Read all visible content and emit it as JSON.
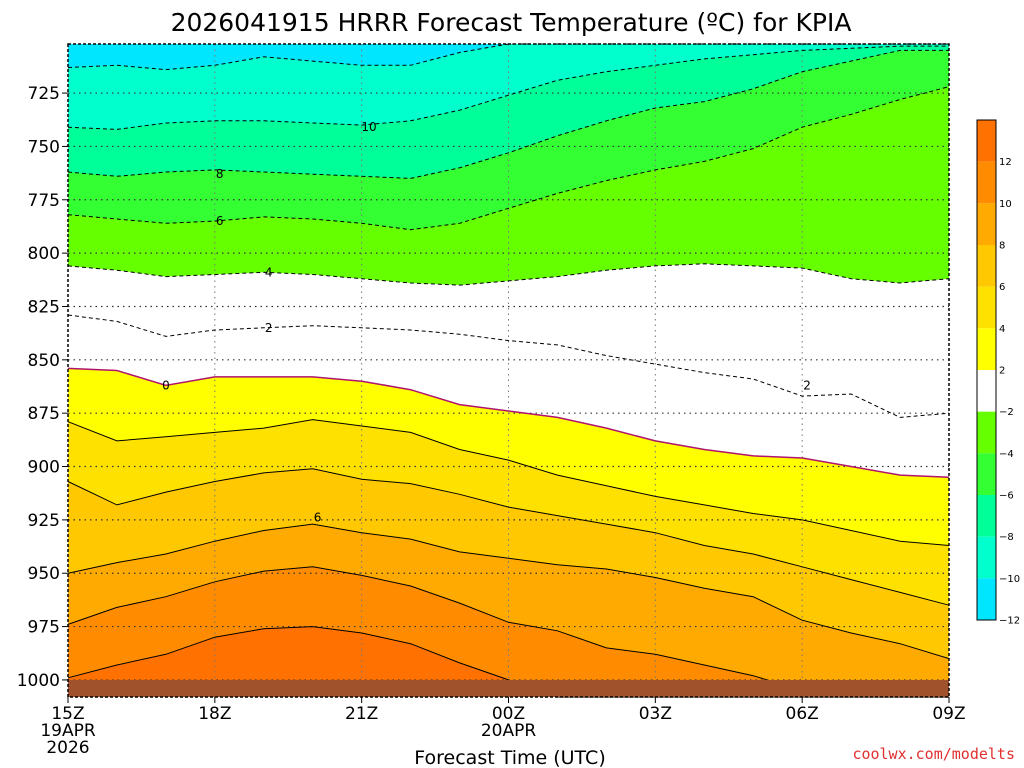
{
  "chart_data": {
    "type": "contour",
    "title": "2026041915 HRRR Forecast Temperature (ºC) for KPIA",
    "xlabel": "Forecast Time (UTC)",
    "ylabel": "",
    "x_hours": [
      0,
      1,
      2,
      3,
      4,
      5,
      6,
      7,
      8,
      9,
      10,
      11,
      12,
      13,
      14,
      15,
      16,
      17,
      18
    ],
    "x_ticks": [
      {
        "hour": 0,
        "lines": [
          "15Z",
          "19APR",
          "2026"
        ]
      },
      {
        "hour": 3,
        "lines": [
          "18Z"
        ]
      },
      {
        "hour": 6,
        "lines": [
          "21Z"
        ]
      },
      {
        "hour": 9,
        "lines": [
          "00Z",
          "20APR"
        ]
      },
      {
        "hour": 12,
        "lines": [
          "03Z"
        ]
      },
      {
        "hour": 15,
        "lines": [
          "06Z"
        ]
      },
      {
        "hour": 18,
        "lines": [
          "09Z"
        ]
      }
    ],
    "ylim_pressure_hPa": [
      1008,
      702
    ],
    "y_ticks": [
      725,
      750,
      775,
      800,
      825,
      850,
      875,
      900,
      925,
      950,
      975,
      1000
    ],
    "surface_pressure_hPa": 1000,
    "levels": [
      {
        "value": -12,
        "color": "#00e6ff",
        "press": [
          713,
          712,
          714,
          712,
          708,
          710,
          712,
          712,
          706,
          701,
          700,
          700,
          700,
          700,
          700,
          700,
          700,
          700,
          700
        ]
      },
      {
        "value": -10,
        "color": "#00ffcc",
        "press": [
          741,
          742,
          739,
          738,
          738,
          739,
          740,
          738,
          733,
          726,
          719,
          715,
          712,
          709,
          707,
          705,
          704,
          703,
          703
        ]
      },
      {
        "value": -8,
        "color": "#00ff99",
        "press": [
          762,
          764,
          762,
          761,
          762,
          763,
          764,
          765,
          760,
          753,
          745,
          738,
          732,
          729,
          723,
          715,
          710,
          705,
          705
        ]
      },
      {
        "value": -6,
        "color": "#33ff33",
        "press": [
          782,
          784,
          786,
          785,
          783,
          784,
          786,
          789,
          786,
          779,
          772,
          766,
          761,
          757,
          751,
          741,
          735,
          728,
          722
        ]
      },
      {
        "value": -4,
        "color": "#66ff00",
        "press": [
          806,
          808,
          811,
          810,
          809,
          810,
          812,
          814,
          815,
          813,
          811,
          808,
          806,
          805,
          806,
          807,
          812,
          814,
          812
        ]
      },
      {
        "value": -2,
        "color": "#ffffff",
        "press": [
          829,
          832,
          839,
          836,
          835,
          834,
          835,
          836,
          838,
          841,
          843,
          848,
          852,
          856,
          859,
          867,
          866,
          877,
          875
        ]
      },
      {
        "value": 0,
        "color": "#ffffff",
        "press": [
          854,
          855,
          862,
          858,
          858,
          858,
          860,
          864,
          871,
          874,
          877,
          882,
          888,
          892,
          895,
          896,
          900,
          904,
          905
        ]
      },
      {
        "value": 2,
        "color": "#ffff00",
        "press": [
          879,
          888,
          886,
          884,
          882,
          878,
          881,
          884,
          892,
          897,
          904,
          909,
          914,
          918,
          922,
          925,
          930,
          935,
          937
        ]
      },
      {
        "value": 4,
        "color": "#ffe100",
        "press": [
          907,
          918,
          912,
          907,
          903,
          901,
          906,
          908,
          913,
          919,
          923,
          927,
          931,
          937,
          941,
          947,
          953,
          959,
          965
        ]
      },
      {
        "value": 6,
        "color": "#ffc800",
        "press": [
          950,
          945,
          941,
          935,
          930,
          927,
          931,
          934,
          940,
          943,
          946,
          948,
          952,
          957,
          961,
          972,
          978,
          983,
          990
        ]
      },
      {
        "value": 8,
        "color": "#ffaa00",
        "press": [
          974,
          966,
          961,
          954,
          949,
          947,
          951,
          956,
          964,
          973,
          977,
          985,
          988,
          993,
          998,
          1005,
          1008,
          1008,
          1008
        ]
      },
      {
        "value": 10,
        "color": "#ff8c00",
        "press": [
          999,
          993,
          988,
          980,
          976,
          975,
          978,
          983,
          992,
          1000,
          1008,
          1008,
          1008,
          1008,
          1008,
          1008,
          1008,
          1008,
          1008
        ]
      },
      {
        "value": 12,
        "color": "#ff7100",
        "press": [
          1008,
          1008,
          1008,
          1005,
          1001,
          1000,
          1002,
          1008,
          1008,
          1008,
          1008,
          1008,
          1008,
          1008,
          1008,
          1008,
          1008,
          1008,
          1008
        ]
      }
    ],
    "contour_labels": [
      {
        "text": "10",
        "hour": 6.15,
        "press": 741
      },
      {
        "text": "8",
        "hour": 3.1,
        "press": 763
      },
      {
        "text": "6",
        "hour": 3.1,
        "press": 785
      },
      {
        "text": "4",
        "hour": 4.1,
        "press": 809
      },
      {
        "text": "2",
        "hour": 4.1,
        "press": 835
      },
      {
        "text": "0",
        "hour": 2.0,
        "press": 862
      },
      {
        "text": "2",
        "hour": 15.1,
        "press": 862
      },
      {
        "text": "6",
        "hour": 5.1,
        "press": 924
      }
    ],
    "colorbar": {
      "ticks": [
        "12",
        "10",
        "8",
        "6",
        "4",
        "2",
        "−2",
        "−4",
        "−6",
        "−8",
        "−10",
        "−12"
      ],
      "colors": [
        "#ff7100",
        "#ff8c00",
        "#ffaa00",
        "#ffc800",
        "#ffe100",
        "#ffff00",
        "#ffffff",
        "#66ff00",
        "#33ff33",
        "#00ff99",
        "#00ffcc",
        "#00e6ff"
      ],
      "credit": "coolwx.com/modelts",
      "credit_color": "#e03030",
      "ground_color": "#a0522d",
      "zero_line_color": "#b0146c"
    }
  }
}
